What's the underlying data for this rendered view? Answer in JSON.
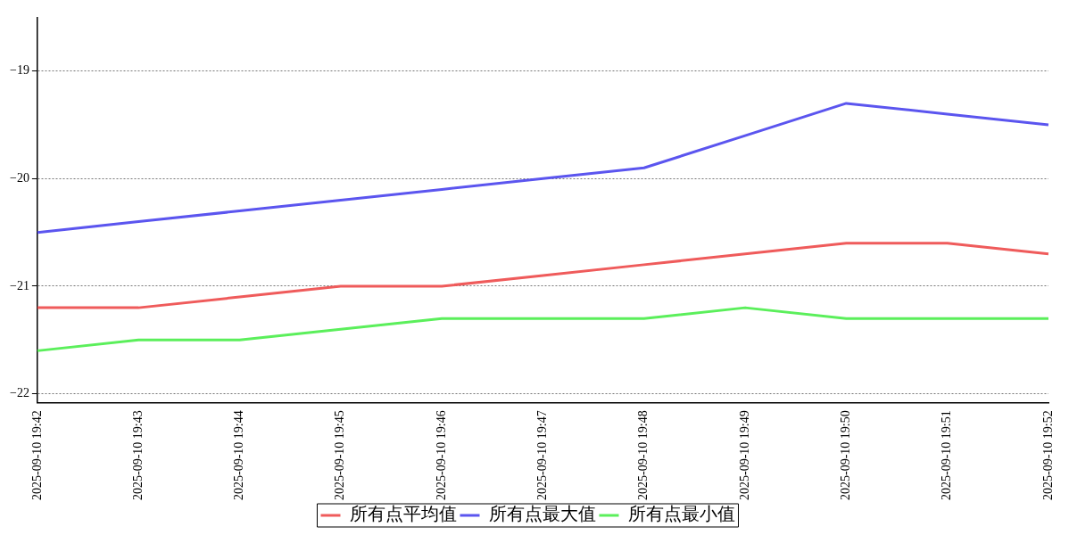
{
  "chart_data": {
    "type": "line",
    "categories": [
      "2025-09-10 19:42",
      "2025-09-10 19:43",
      "2025-09-10 19:44",
      "2025-09-10 19:45",
      "2025-09-10 19:46",
      "2025-09-10 19:47",
      "2025-09-10 19:48",
      "2025-09-10 19:49",
      "2025-09-10 19:50",
      "2025-09-10 19:51",
      "2025-09-10 19:52"
    ],
    "series": [
      {
        "name": "所有点平均值",
        "color": "#ef5b5b",
        "values": [
          -21.2,
          -21.2,
          -21.1,
          -21.0,
          -21.0,
          -20.9,
          -20.8,
          -20.7,
          -20.6,
          -20.6,
          -20.7
        ]
      },
      {
        "name": "所有点最大值",
        "color": "#5b55ef",
        "values": [
          -20.5,
          -20.4,
          -20.3,
          -20.2,
          -20.1,
          -20.0,
          -19.9,
          -19.6,
          -19.3,
          -19.4,
          -19.5
        ]
      },
      {
        "name": "所有点最小值",
        "color": "#5bef5b",
        "values": [
          -21.6,
          -21.5,
          -21.5,
          -21.4,
          -21.3,
          -21.3,
          -21.3,
          -21.2,
          -21.3,
          -21.3,
          -21.3
        ]
      }
    ],
    "ylim": [
      -22.08,
      -18.5
    ],
    "yticks": [
      -22,
      -21,
      -20,
      -19
    ],
    "grid": "y",
    "legend": "bottom",
    "marker": "none",
    "line_style": "solid"
  }
}
